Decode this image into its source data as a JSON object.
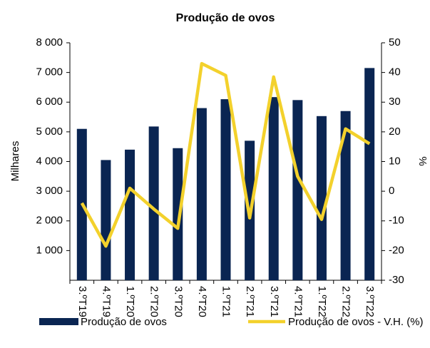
{
  "chart_data": {
    "type": "bar-line",
    "title": "Produção de ovos",
    "categories": [
      "3.ºT19",
      "4.ºT19",
      "1.ºT20",
      "2.ºT20",
      "3.ºT20",
      "4.ºT20",
      "1.ºT21",
      "2.ºT21",
      "3.ºT21",
      "4.ºT21",
      "1.ºT22",
      "2.ºT22",
      "3.ºT22"
    ],
    "series": [
      {
        "name": "Produção de ovos",
        "color": "#0a2552",
        "type": "bar",
        "values": [
          5100,
          4050,
          4400,
          5180,
          4450,
          5800,
          6100,
          4700,
          6170,
          6070,
          5530,
          5700,
          7150
        ]
      },
      {
        "name": "Produção de ovos - V.H. (%)",
        "color": "#f3d12c",
        "type": "line",
        "axis": "y2",
        "values": [
          -4,
          -18.5,
          1,
          -6,
          -12.5,
          43,
          39,
          -9,
          38.5,
          5,
          -9.5,
          21,
          16
        ]
      }
    ],
    "ylabel": "Milhares",
    "y2label": "%",
    "ylim": [
      0,
      8000
    ],
    "yticks": [
      {
        "value": 1000,
        "label": "1 000"
      },
      {
        "value": 2000,
        "label": "2 000"
      },
      {
        "value": 3000,
        "label": "3 000"
      },
      {
        "value": 4000,
        "label": "4 000"
      },
      {
        "value": 5000,
        "label": "5 000"
      },
      {
        "value": 6000,
        "label": "6 000"
      },
      {
        "value": 7000,
        "label": "7 000"
      },
      {
        "value": 8000,
        "label": "8 000"
      }
    ],
    "y2lim": [
      -30,
      50
    ],
    "y2ticks": [
      -30,
      -20,
      -10,
      0,
      10,
      20,
      30,
      40,
      50
    ],
    "legend": "bottom"
  }
}
